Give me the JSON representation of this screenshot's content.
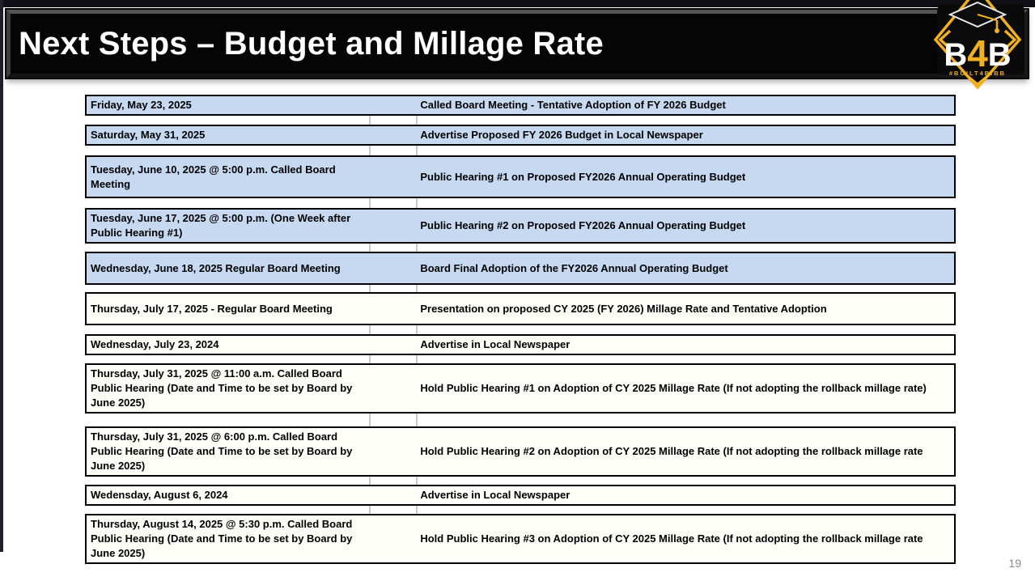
{
  "slide": {
    "title": "Next Steps – Budget and Millage Rate",
    "page_number": "19"
  },
  "logo": {
    "letter_b1": "B",
    "digit_4": "4",
    "letter_b2": "B",
    "tagline": "#BUILT4BIBB"
  },
  "colors": {
    "row_highlight": "#C6D9F1",
    "row_plain": "#FDFEF7",
    "table_border": "#000000",
    "accent_gold": "#F0B01F",
    "banner_text": "#FFFFFF",
    "page_number": "#8A8A8A"
  },
  "schedule": {
    "rows": [
      {
        "date": "Friday, May 23, 2025",
        "event": "Called Board Meeting - Tentative Adoption of FY 2026 Budget",
        "highlight": true
      },
      {
        "date": "Saturday, May 31, 2025",
        "event": "Advertise Proposed FY 2026 Budget in Local Newspaper",
        "highlight": true
      },
      {
        "date": "Tuesday, June 10, 2025 @ 5:00 p.m. Called Board Meeting",
        "event": "Public Hearing #1 on Proposed FY2026 Annual Operating Budget",
        "highlight": true
      },
      {
        "date": "Tuesday, June 17, 2025 @ 5:00 p.m. (One Week after Public Hearing #1)",
        "event": "Public Hearing #2 on Proposed FY2026 Annual Operating Budget",
        "highlight": true
      },
      {
        "date": "Wednesday, June 18, 2025 Regular Board Meeting",
        "event": "Board Final Adoption of the FY2026 Annual Operating Budget",
        "highlight": true
      },
      {
        "date": "Thursday, July 17, 2025 - Regular Board Meeting",
        "event": "Presentation on proposed CY 2025 (FY 2026) Millage Rate and Tentative Adoption",
        "highlight": false
      },
      {
        "date": "Wednesday, July 23, 2024",
        "event": "Advertise in Local Newspaper",
        "highlight": false
      },
      {
        "date": "Thursday, July 31, 2025 @ 11:00 a.m. Called Board Public Hearing (Date and Time to be set by Board by June 2025)",
        "event": "Hold Public Hearing #1 on Adoption of CY 2025 Millage Rate (If not adopting the rollback millage rate)",
        "highlight": false
      },
      {
        "date": "Thursday, July 31, 2025 @ 6:00 p.m. Called Board Public Hearing (Date and Time to be set by Board by June 2025)",
        "event": "Hold Public Hearing #2 on Adoption of CY 2025 Millage Rate (If not adopting the rollback millage rate",
        "highlight": false
      },
      {
        "date": "Wedensday, August 6, 2024",
        "event": "Advertise in Local Newspaper",
        "highlight": false
      },
      {
        "date": "Thursday, August 14, 2025 @ 5:30 p.m. Called Board Public Hearing (Date and Time to be set by Board by June 2025)",
        "event": "Hold Public Hearing #3 on Adoption of CY 2025 Millage Rate (If not adopting the rollback millage rate",
        "highlight": false
      }
    ]
  }
}
